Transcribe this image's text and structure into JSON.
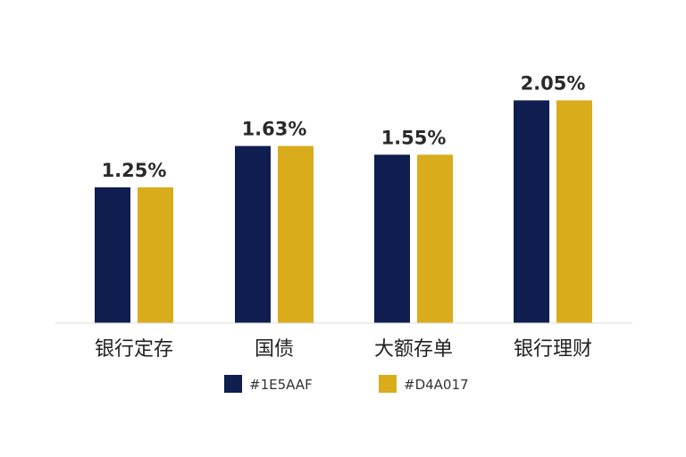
{
  "chart_data": {
    "type": "bar",
    "title": "",
    "xlabel": "",
    "ylabel": "",
    "categories": [
      "银行定存",
      "国债",
      "大额存单",
      "银行理财"
    ],
    "value_labels": [
      "1.25%",
      "1.63%",
      "1.55%",
      "2.05%"
    ],
    "series": [
      {
        "name": "#1E5AAF",
        "color": "#0f1d4f",
        "values": [
          1.25,
          1.63,
          1.55,
          2.05
        ]
      },
      {
        "name": "#D4A017",
        "color": "#d9ac1c",
        "values": [
          1.25,
          1.63,
          1.55,
          2.05
        ]
      }
    ],
    "ylim": [
      0,
      2.3
    ],
    "grid": false,
    "legend_position": "bottom-center"
  }
}
